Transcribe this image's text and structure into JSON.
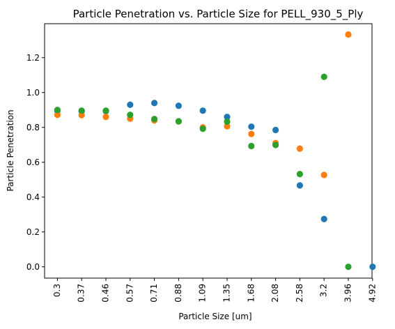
{
  "chart_data": {
    "type": "scatter",
    "title": "Particle Penetration vs. Particle Size for PELL_930_5_Ply",
    "xlabel": "Particle Size [um]",
    "ylabel": "Particle Penetration",
    "categories": [
      "0.3",
      "0.37",
      "0.46",
      "0.57",
      "0.71",
      "0.88",
      "1.09",
      "1.35",
      "1.68",
      "2.08",
      "2.58",
      "3.2",
      "3.96",
      "4.92"
    ],
    "ylim": [
      -0.065,
      1.395
    ],
    "yticks": [
      "0.0",
      "0.2",
      "0.4",
      "0.6",
      "0.8",
      "1.0",
      "1.2"
    ],
    "grid": false,
    "series": [
      {
        "color": "#1f77b4",
        "values": [
          0.895,
          0.893,
          0.893,
          0.93,
          0.94,
          0.924,
          0.896,
          0.86,
          0.804,
          0.785,
          0.467,
          0.274,
          null,
          0.0
        ]
      },
      {
        "color": "#ff7f0e",
        "values": [
          0.872,
          0.87,
          0.86,
          0.85,
          0.84,
          0.834,
          0.8,
          0.806,
          0.762,
          0.71,
          0.678,
          0.527,
          1.333,
          null
        ]
      },
      {
        "color": "#2ca02c",
        "values": [
          0.9,
          0.896,
          0.896,
          0.872,
          0.848,
          0.835,
          0.792,
          0.833,
          0.693,
          0.699,
          0.532,
          1.09,
          0.0,
          null
        ]
      }
    ]
  }
}
